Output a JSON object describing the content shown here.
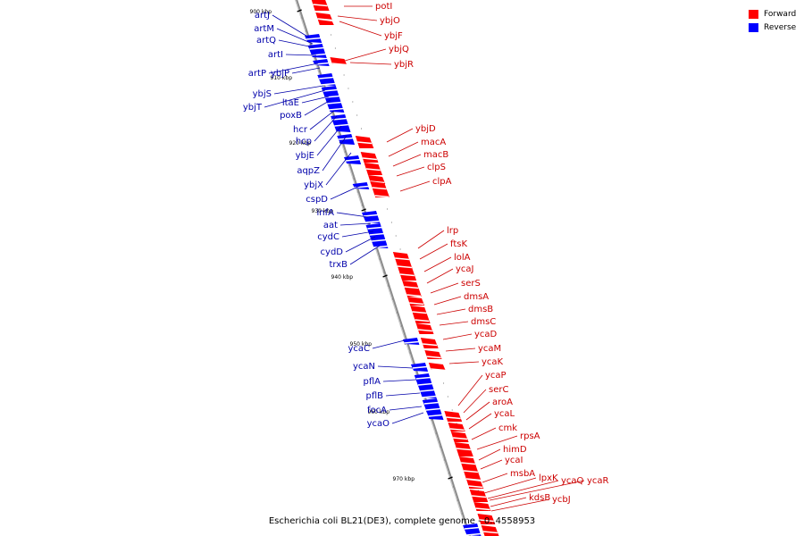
{
  "title": "Escherichia coli BL21(DE3), complete genome - 0..4558953",
  "legend": [
    {
      "label": "Forward",
      "color": "#ff0000"
    },
    {
      "label": "Reverse",
      "color": "#0000ff"
    }
  ],
  "colors": {
    "forward": "#ff0000",
    "reverse": "#0000ff",
    "backbone": "#8c8c8c",
    "forward_label": "#cc0000",
    "reverse_label": "#0000aa"
  },
  "ticks": [
    "900 kbp",
    "910 kbp",
    "920 kbp",
    "930 kbp",
    "940 kbp",
    "950 kbp",
    "960 kbp",
    "970 kbp"
  ],
  "forward_genes": [
    "potI",
    "ybjO",
    "ybjF",
    "ybjQ",
    "ybjR",
    "ybjD",
    "macA",
    "macB",
    "clpS",
    "clpA",
    "lrp",
    "ftsK",
    "lolA",
    "ycaJ",
    "serS",
    "dmsA",
    "dmsB",
    "dmsC",
    "ycaD",
    "ycaM",
    "ycaK",
    "ycaP",
    "serC",
    "aroA",
    "ycaL",
    "cmk",
    "rpsA",
    "himD",
    "ycaI",
    "msbA",
    "lpxK",
    "ycaQ",
    "ycaR",
    "kdsB",
    "ycbJ"
  ],
  "reverse_genes": [
    "artJ",
    "artM",
    "artQ",
    "artI",
    "artP",
    "ybjP",
    "ybjS",
    "ybjT",
    "ltaE",
    "poxB",
    "hcr",
    "hcp",
    "ybjE",
    "aqpZ",
    "ybjX",
    "cspD",
    "infA",
    "aat",
    "cydC",
    "cydD",
    "trxB",
    "ycaC",
    "ycaN",
    "pflA",
    "pflB",
    "focA",
    "ycaO"
  ]
}
